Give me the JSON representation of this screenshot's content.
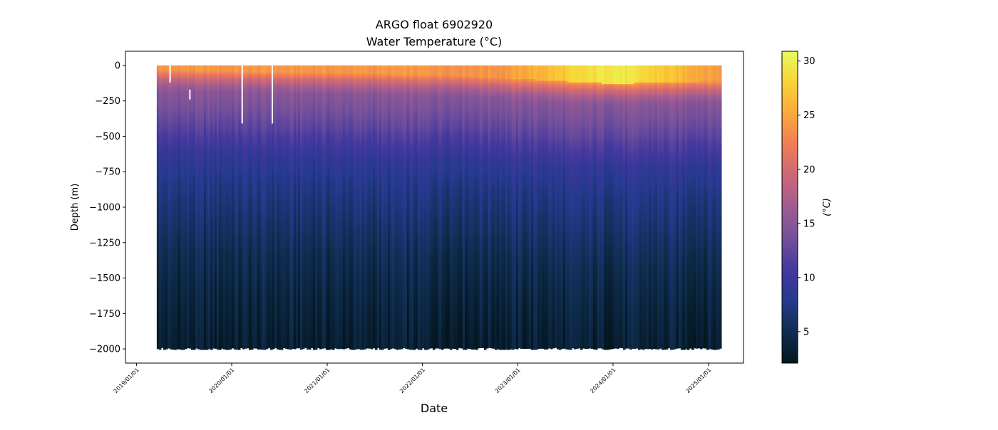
{
  "chart_data": {
    "type": "heatmap",
    "title_line1": "ARGO float 6902920",
    "title_line2": "Water Temperature (°C)",
    "xlabel": "Date",
    "ylabel": "Depth (m)",
    "x_range": [
      "2018-11-20",
      "2025-05-15"
    ],
    "data_x_range": [
      "2019-03-20",
      "2025-02-17"
    ],
    "ylim": [
      -2100,
      100
    ],
    "y_ticks": [
      0,
      -250,
      -500,
      -750,
      -1000,
      -1250,
      -1500,
      -1750,
      -2000
    ],
    "y_tick_labels": [
      "0",
      "−250",
      "−500",
      "−750",
      "−1000",
      "−1250",
      "−1500",
      "−1750",
      "−2000"
    ],
    "x_ticks": [
      "2019-01-01",
      "2020-01-01",
      "2021-01-01",
      "2022-01-01",
      "2023-01-01",
      "2024-01-01",
      "2025-01-01"
    ],
    "x_tick_labels": [
      "2019/01/01",
      "2020/01/01",
      "2021/01/01",
      "2022/01/01",
      "2023/01/01",
      "2024/01/01",
      "2025/01/01"
    ],
    "max_depth": -2000,
    "temperature_profile": {
      "depths": [
        0,
        -50,
        -100,
        -150,
        -250,
        -400,
        -600,
        -800,
        -1000,
        -1300,
        -1600,
        -2000
      ],
      "temps": [
        24,
        20,
        17,
        15,
        14,
        12,
        9,
        7.5,
        6.5,
        5,
        4,
        3
      ]
    },
    "mixed_layer_depth_by_year": [
      {
        "date": "2019-03-20",
        "depth": -30
      },
      {
        "date": "2020-06-01",
        "depth": -45
      },
      {
        "date": "2021-06-01",
        "depth": -55
      },
      {
        "date": "2022-06-01",
        "depth": -70
      },
      {
        "date": "2023-06-01",
        "depth": -110
      },
      {
        "date": "2024-01-01",
        "depth": -130
      },
      {
        "date": "2025-02-17",
        "depth": -110
      }
    ],
    "surface_peak_temp": 30,
    "colorbar": {
      "label": "(°C)",
      "range": [
        2.1,
        30.9
      ],
      "ticks": [
        5,
        10,
        15,
        20,
        25,
        30
      ],
      "tick_labels": [
        "5",
        "10",
        "15",
        "20",
        "25",
        "30"
      ],
      "colormap": "thermal",
      "stops": [
        "#04161f",
        "#0f2d4f",
        "#253a8e",
        "#45389f",
        "#73509b",
        "#9f5c91",
        "#cc6778",
        "#ee7d56",
        "#fba83c",
        "#f9d335",
        "#e8fa5b"
      ]
    },
    "gaps": [
      {
        "date": "2019-05-10",
        "depth_bottom": -120
      },
      {
        "date": "2019-07-25",
        "depth_top": -170,
        "depth_bottom": -240
      },
      {
        "date": "2020-02-10",
        "depth_bottom": -410
      },
      {
        "date": "2020-06-05",
        "depth_bottom": -410
      }
    ]
  }
}
